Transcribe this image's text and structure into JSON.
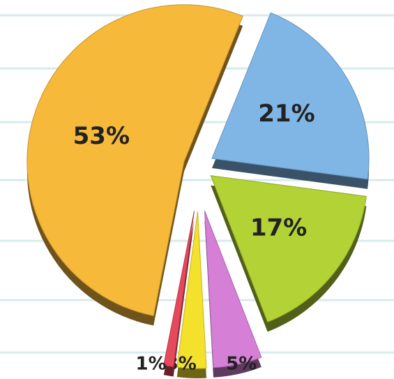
{
  "chart_data": {
    "type": "pie",
    "values": [
      21,
      17,
      5,
      3,
      1,
      53
    ],
    "value_labels": [
      "21%",
      "17%",
      "5%",
      "3%",
      "1%",
      "53%"
    ],
    "colors": [
      "#7fb6e6",
      "#b3d236",
      "#d57fd6",
      "#f3e12c",
      "#e6495c",
      "#f7b93a"
    ]
  }
}
